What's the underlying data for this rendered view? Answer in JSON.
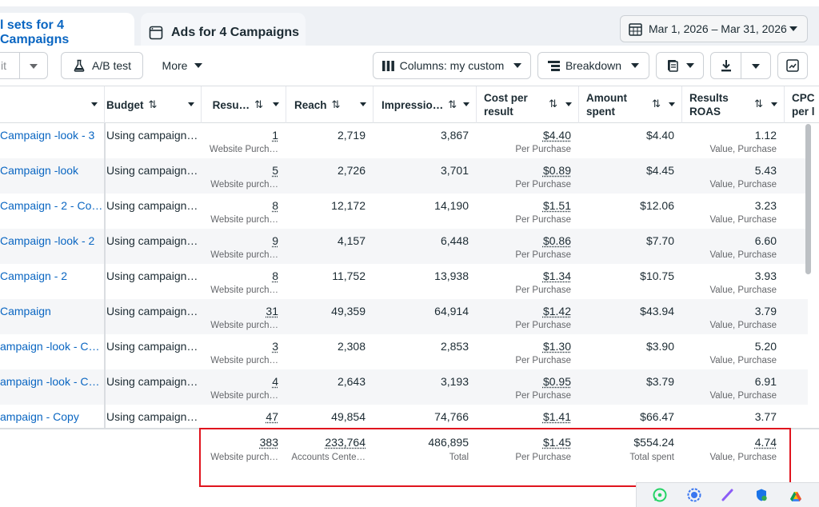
{
  "tabs": [
    {
      "label": "l sets for 4 Campaigns",
      "active": true
    },
    {
      "label": "Ads for 4 Campaigns",
      "active": false
    }
  ],
  "date_range": "Mar 1, 2026 – Mar 31, 2026",
  "toolbar": {
    "edit_fragment": "it",
    "ab_test": "A/B test",
    "more": "More",
    "columns": "Columns: my custom",
    "breakdown": "Breakdown"
  },
  "headers": {
    "budget": "Budget",
    "results": "Resu…",
    "reach": "Reach",
    "impressions": "Impressio…",
    "cost_per_result": [
      "Cost per",
      "result"
    ],
    "amount_spent": [
      "Amount",
      "spent"
    ],
    "results_roas": [
      "Results",
      "ROAS"
    ],
    "cpc": [
      "CPC",
      "per l"
    ]
  },
  "rows": [
    {
      "name": "Campaign -look - 3",
      "budget": "Using campaign…",
      "results": "1",
      "results_sub": "Website Purch…",
      "reach": "2,719",
      "impressions": "3,867",
      "cpr": "$4.40",
      "cpr_sub": "Per Purchase",
      "spent": "$4.40",
      "roas": "1.12",
      "roas_sub": "Value, Purchase"
    },
    {
      "name": "Campaign -look",
      "budget": "Using campaign…",
      "results": "5",
      "results_sub": "Website purch…",
      "reach": "2,726",
      "impressions": "3,701",
      "cpr": "$0.89",
      "cpr_sub": "Per Purchase",
      "spent": "$4.45",
      "roas": "5.43",
      "roas_sub": "Value, Purchase"
    },
    {
      "name": "Campaign - 2 - Co…",
      "budget": "Using campaign…",
      "results": "8",
      "results_sub": "Website purch…",
      "reach": "12,172",
      "impressions": "14,190",
      "cpr": "$1.51",
      "cpr_sub": "Per Purchase",
      "spent": "$12.06",
      "roas": "3.23",
      "roas_sub": "Value, Purchase"
    },
    {
      "name": "Campaign -look - 2",
      "budget": "Using campaign…",
      "results": "9",
      "results_sub": "Website purch…",
      "reach": "4,157",
      "impressions": "6,448",
      "cpr": "$0.86",
      "cpr_sub": "Per Purchase",
      "spent": "$7.70",
      "roas": "6.60",
      "roas_sub": "Value, Purchase"
    },
    {
      "name": "Campaign - 2",
      "budget": "Using campaign…",
      "results": "8",
      "results_sub": "Website purch…",
      "reach": "11,752",
      "impressions": "13,938",
      "cpr": "$1.34",
      "cpr_sub": "Per Purchase",
      "spent": "$10.75",
      "roas": "3.93",
      "roas_sub": "Value, Purchase"
    },
    {
      "name": "Campaign",
      "budget": "Using campaign…",
      "results": "31",
      "results_sub": "Website purch…",
      "reach": "49,359",
      "impressions": "64,914",
      "cpr": "$1.42",
      "cpr_sub": "Per Purchase",
      "spent": "$43.94",
      "roas": "3.79",
      "roas_sub": "Value, Purchase"
    },
    {
      "name": "ampaign -look - C…",
      "budget": "Using campaign…",
      "results": "3",
      "results_sub": "Website purch…",
      "reach": "2,308",
      "impressions": "2,853",
      "cpr": "$1.30",
      "cpr_sub": "Per Purchase",
      "spent": "$3.90",
      "roas": "5.20",
      "roas_sub": "Value, Purchase"
    },
    {
      "name": "ampaign -look - C…",
      "budget": "Using campaign…",
      "results": "4",
      "results_sub": "Website purch…",
      "reach": "2,643",
      "impressions": "3,193",
      "cpr": "$0.95",
      "cpr_sub": "Per Purchase",
      "spent": "$3.79",
      "roas": "6.91",
      "roas_sub": "Value, Purchase"
    },
    {
      "name": "ampaign - Copy",
      "budget": "Using campaign…",
      "results": "47",
      "results_sub": "",
      "reach": "49,854",
      "impressions": "74,766",
      "cpr": "$1.41",
      "cpr_sub": "",
      "spent": "$66.47",
      "roas": "3.77",
      "roas_sub": ""
    }
  ],
  "totals": {
    "results": "383",
    "results_sub": "Website purch…",
    "reach": "233,764",
    "reach_sub": "Accounts Cente…",
    "impressions": "486,895",
    "impressions_sub": "Total",
    "cpr": "$1.45",
    "cpr_sub": "Per Purchase",
    "spent": "$554.24",
    "spent_sub": "Total spent",
    "roas": "4.74",
    "roas_sub": "Value, Purchase"
  },
  "colors": {
    "accent": "#0a66c2",
    "highlight": "#e0141e"
  },
  "tray_icons": [
    "whatsapp-icon",
    "signal-icon",
    "pen-icon",
    "shield-icon",
    "drive-icon"
  ]
}
